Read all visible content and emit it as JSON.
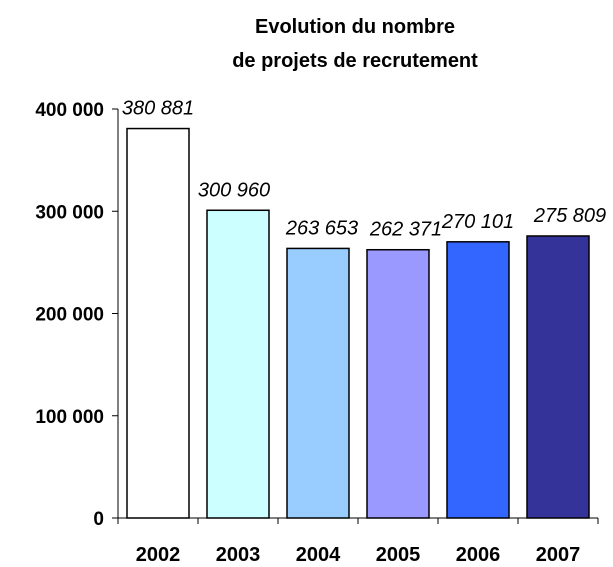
{
  "chart_data": {
    "type": "bar",
    "title": [
      "Evolution du nombre",
      "de projets de recrutement"
    ],
    "categories": [
      "2002",
      "2003",
      "2004",
      "2005",
      "2006",
      "2007"
    ],
    "values": [
      380881,
      300960,
      263653,
      262371,
      270101,
      275809
    ],
    "data_labels": [
      "380 881",
      "300 960",
      "263 653",
      "262 371",
      "270 101",
      "275 809"
    ],
    "ylim": [
      0,
      400000
    ],
    "yticks": [
      0,
      100000,
      200000,
      300000,
      400000
    ],
    "ytick_labels": [
      "0",
      "100 000",
      "200 000",
      "300 000",
      "400 000"
    ],
    "bar_colors": [
      "#ffffff",
      "#ccffff",
      "#99ccff",
      "#9999ff",
      "#3366ff",
      "#333399"
    ],
    "bar_edge_color": "#000000",
    "grid": false,
    "legend": "none"
  }
}
